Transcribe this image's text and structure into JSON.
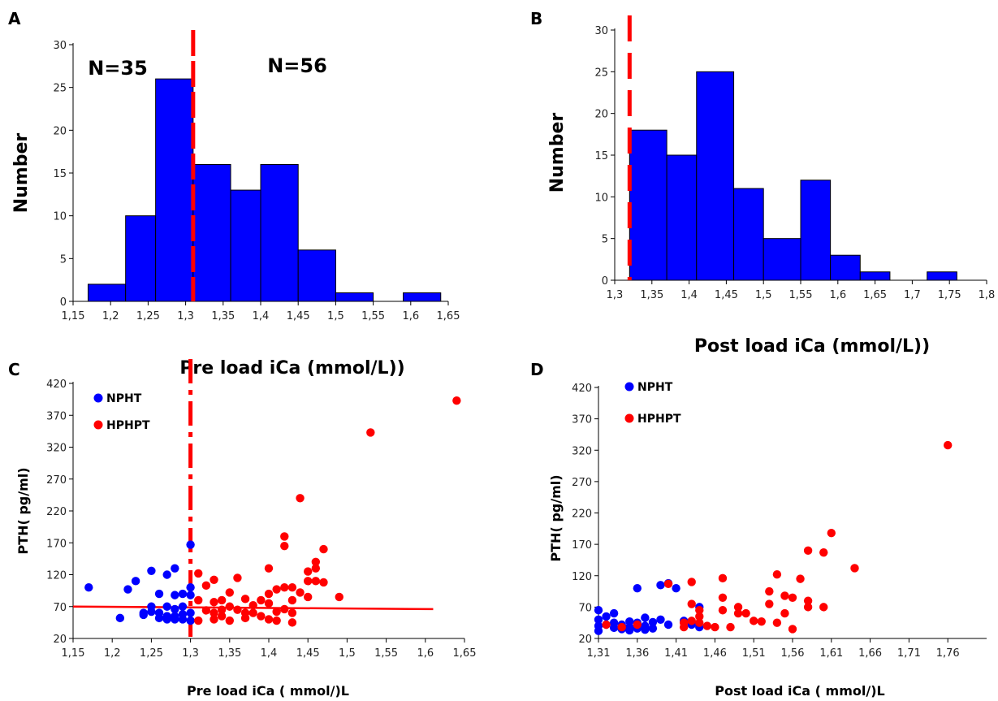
{
  "colors": {
    "bar": "#0000ff",
    "npht": "#0000ff",
    "hphpt": "#ff0000",
    "threshold": "#ff0000",
    "axis": "#000000"
  },
  "chart_data": [
    {
      "panel": "A",
      "type": "bar",
      "bin_edges": [
        1.17,
        1.22,
        1.26,
        1.31,
        1.36,
        1.4,
        1.45,
        1.5,
        1.55,
        1.59,
        1.64
      ],
      "values": [
        2,
        10,
        26,
        16,
        13,
        16,
        6,
        1,
        0,
        1
      ],
      "xlim": [
        1.15,
        1.65
      ],
      "ylim": [
        0,
        30
      ],
      "xticks": [
        "1,15",
        "1,2",
        "1,25",
        "1,3",
        "1,35",
        "1,4",
        "1,45",
        "1,5",
        "1,55",
        "1,6",
        "1,65"
      ],
      "yticks": [
        "0",
        "5",
        "10",
        "15",
        "20",
        "25",
        "30"
      ],
      "threshold_x": 1.31,
      "ylabel": "Number",
      "xlabel": "Pre load iCa (mmol/L))",
      "annotations": [
        "N=35",
        "N=56"
      ]
    },
    {
      "panel": "B",
      "type": "bar",
      "bin_edges": [
        1.32,
        1.37,
        1.41,
        1.46,
        1.5,
        1.55,
        1.59,
        1.63,
        1.67,
        1.72,
        1.76
      ],
      "values": [
        18,
        15,
        25,
        11,
        5,
        12,
        3,
        1,
        0,
        1
      ],
      "xlim": [
        1.3,
        1.8
      ],
      "ylim": [
        0,
        30
      ],
      "xticks": [
        "1,3",
        "1,35",
        "1,4",
        "1,45",
        "1,5",
        "1,55",
        "1,6",
        "1,65",
        "1,7",
        "1,75",
        "1,8"
      ],
      "yticks": [
        "0",
        "5",
        "10",
        "15",
        "20",
        "25",
        "30"
      ],
      "threshold_x": 1.32,
      "ylabel": "Number",
      "xlabel": "Post load iCa (mmol/L))"
    },
    {
      "panel": "C",
      "type": "scatter",
      "xlim": [
        1.15,
        1.65
      ],
      "ylim": [
        20,
        420
      ],
      "xticks": [
        "1,15",
        "1,2",
        "1,25",
        "1,3",
        "1,35",
        "1,4",
        "1,45",
        "1,5",
        "1,55",
        "1,6",
        "1,65"
      ],
      "yticks": [
        "20",
        "70",
        "120",
        "170",
        "220",
        "270",
        "320",
        "370",
        "420"
      ],
      "threshold_x": 1.3,
      "trend_line": [
        [
          1.15,
          70
        ],
        [
          1.61,
          66
        ]
      ],
      "ylabel": "PTH( pg/ml)",
      "xlabel": "Pre load iCa ( mmol/)L",
      "legend": [
        "NPHT",
        "HPHPT"
      ],
      "series": [
        {
          "name": "NPHT",
          "x": [
            1.17,
            1.21,
            1.22,
            1.23,
            1.24,
            1.24,
            1.25,
            1.25,
            1.25,
            1.26,
            1.26,
            1.26,
            1.27,
            1.27,
            1.27,
            1.27,
            1.28,
            1.28,
            1.28,
            1.28,
            1.28,
            1.29,
            1.29,
            1.29,
            1.29,
            1.3,
            1.3,
            1.3,
            1.3,
            1.3
          ],
          "y": [
            100,
            52,
            97,
            110,
            57,
            60,
            126,
            62,
            70,
            90,
            60,
            52,
            120,
            70,
            55,
            50,
            130,
            88,
            66,
            55,
            50,
            90,
            70,
            58,
            50,
            167,
            100,
            88,
            60,
            48
          ]
        },
        {
          "name": "HPHPT",
          "x": [
            1.31,
            1.31,
            1.31,
            1.32,
            1.32,
            1.33,
            1.33,
            1.33,
            1.33,
            1.34,
            1.34,
            1.34,
            1.35,
            1.35,
            1.35,
            1.36,
            1.36,
            1.37,
            1.37,
            1.37,
            1.38,
            1.38,
            1.39,
            1.39,
            1.4,
            1.4,
            1.4,
            1.4,
            1.41,
            1.41,
            1.41,
            1.42,
            1.42,
            1.42,
            1.42,
            1.43,
            1.43,
            1.43,
            1.43,
            1.44,
            1.44,
            1.45,
            1.45,
            1.45,
            1.46,
            1.46,
            1.46,
            1.47,
            1.47,
            1.49,
            1.53,
            1.64
          ],
          "y": [
            122,
            80,
            48,
            103,
            64,
            112,
            77,
            60,
            50,
            80,
            65,
            55,
            92,
            70,
            48,
            115,
            65,
            82,
            60,
            52,
            72,
            60,
            80,
            55,
            130,
            90,
            75,
            50,
            97,
            62,
            48,
            180,
            165,
            100,
            66,
            100,
            80,
            60,
            45,
            240,
            92,
            125,
            110,
            85,
            140,
            130,
            110,
            160,
            108,
            85,
            343,
            393
          ]
        }
      ]
    },
    {
      "panel": "D",
      "type": "scatter",
      "xlim": [
        1.31,
        1.81
      ],
      "ylim": [
        20,
        420
      ],
      "xticks": [
        "1,31",
        "1,36",
        "1,41",
        "1,46",
        "1,51",
        "1,56",
        "1,61",
        "1,66",
        "1,71",
        "1,76"
      ],
      "yticks": [
        "20",
        "70",
        "120",
        "170",
        "220",
        "270",
        "320",
        "370",
        "420"
      ],
      "ylabel": "PTH( pg/ml)",
      "xlabel": "Post load iCa ( mmol/)L",
      "legend": [
        "NPHT",
        "HPHPT"
      ],
      "series": [
        {
          "name": "NPHT",
          "x": [
            1.31,
            1.31,
            1.31,
            1.31,
            1.32,
            1.32,
            1.33,
            1.33,
            1.33,
            1.34,
            1.34,
            1.35,
            1.35,
            1.35,
            1.36,
            1.36,
            1.36,
            1.37,
            1.37,
            1.37,
            1.38,
            1.38,
            1.39,
            1.39,
            1.4,
            1.4,
            1.41,
            1.42,
            1.43,
            1.44,
            1.44
          ],
          "y": [
            65,
            50,
            40,
            32,
            55,
            42,
            60,
            45,
            37,
            42,
            35,
            47,
            38,
            33,
            100,
            45,
            36,
            53,
            40,
            34,
            46,
            36,
            105,
            50,
            108,
            42,
            100,
            48,
            42,
            70,
            38
          ]
        },
        {
          "name": "HPHPT",
          "x": [
            1.32,
            1.34,
            1.36,
            1.4,
            1.42,
            1.42,
            1.43,
            1.43,
            1.43,
            1.44,
            1.44,
            1.44,
            1.45,
            1.46,
            1.47,
            1.47,
            1.47,
            1.48,
            1.49,
            1.49,
            1.5,
            1.51,
            1.52,
            1.53,
            1.53,
            1.54,
            1.54,
            1.55,
            1.55,
            1.56,
            1.56,
            1.57,
            1.58,
            1.58,
            1.58,
            1.6,
            1.6,
            1.61,
            1.64,
            1.76
          ],
          "y": [
            42,
            38,
            42,
            107,
            45,
            38,
            110,
            75,
            48,
            65,
            55,
            45,
            40,
            38,
            116,
            85,
            65,
            38,
            70,
            60,
            60,
            48,
            47,
            95,
            75,
            122,
            45,
            88,
            60,
            85,
            35,
            115,
            160,
            80,
            70,
            157,
            70,
            188,
            132,
            328
          ]
        }
      ]
    }
  ]
}
